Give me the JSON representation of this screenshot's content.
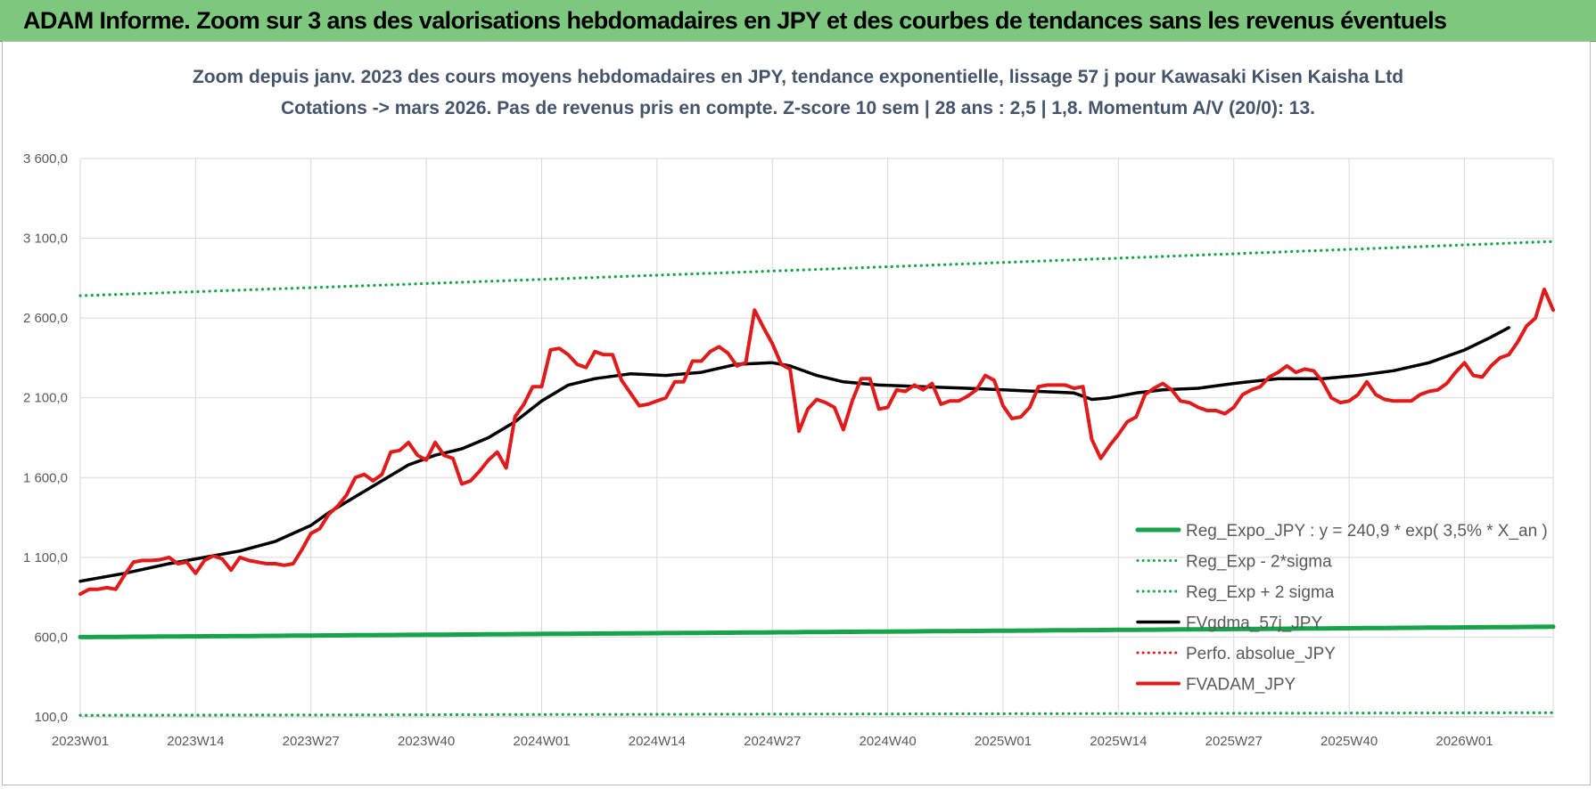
{
  "banner": {
    "title": "ADAM Informe. Zoom sur 3 ans des valorisations hebdomadaires en JPY et des courbes de tendances sans les revenus éventuels"
  },
  "chart_data": {
    "type": "line",
    "title_line1": "Zoom depuis janv. 2023 des cours moyens hebdomadaires en JPY, tendance exponentielle, lissage 57 j pour Kawasaki Kisen Kaisha Ltd",
    "title_line2": "Cotations -> mars 2026. Pas de revenus pris en compte. Z-score 10 sem | 28 ans : 2,5 | 1,8. Momentum A/V (20/0): 13.",
    "xlabel": "",
    "ylabel": "",
    "ylim": [
      100,
      3600
    ],
    "yticks": [
      "100,0",
      "600,0",
      "1 100,0",
      "1 600,0",
      "2 100,0",
      "2 600,0",
      "3 100,0",
      "3 600,0"
    ],
    "yvalues": [
      100,
      600,
      1100,
      1600,
      2100,
      2600,
      3100,
      3600
    ],
    "xticks": [
      "2023W01",
      "2023W14",
      "2023W27",
      "2023W40",
      "2024W01",
      "2024W14",
      "2024W27",
      "2024W40",
      "2025W01",
      "2025W14",
      "2025W27",
      "2025W40",
      "2026W01"
    ],
    "grid": true,
    "legend_position": "bottom-right",
    "colors": {
      "green": "#16a34a",
      "black": "#000000",
      "red": "#e11a1a",
      "grid": "#d9d9d9"
    },
    "series": [
      {
        "name": "Reg_Expo_JPY : y = 240,9 * exp( 3,5% *  X_an )",
        "style": "solid-thick",
        "color": "#16a34a",
        "start": 600,
        "end": 665
      },
      {
        "name": "Reg_Exp - 2*sigma",
        "style": "dotted",
        "color": "#16a34a",
        "start": 110,
        "end": 126
      },
      {
        "name": "Reg_Exp + 2 sigma",
        "style": "dotted",
        "color": "#16a34a",
        "start": 2740,
        "end": 3080
      },
      {
        "name": "FVgdma_57j_JPY",
        "style": "solid",
        "color": "#000000",
        "points": [
          [
            0,
            950
          ],
          [
            5,
            1000
          ],
          [
            10,
            1060
          ],
          [
            14,
            1100
          ],
          [
            18,
            1140
          ],
          [
            22,
            1200
          ],
          [
            26,
            1300
          ],
          [
            28,
            1380
          ],
          [
            31,
            1480
          ],
          [
            34,
            1580
          ],
          [
            37,
            1680
          ],
          [
            40,
            1740
          ],
          [
            43,
            1780
          ],
          [
            46,
            1850
          ],
          [
            49,
            1950
          ],
          [
            52,
            2080
          ],
          [
            55,
            2180
          ],
          [
            58,
            2220
          ],
          [
            62,
            2250
          ],
          [
            66,
            2240
          ],
          [
            70,
            2260
          ],
          [
            74,
            2310
          ],
          [
            78,
            2320
          ],
          [
            80,
            2300
          ],
          [
            83,
            2240
          ],
          [
            86,
            2200
          ],
          [
            90,
            2180
          ],
          [
            95,
            2170
          ],
          [
            100,
            2160
          ],
          [
            104,
            2150
          ],
          [
            108,
            2140
          ],
          [
            112,
            2130
          ],
          [
            114,
            2090
          ],
          [
            116,
            2100
          ],
          [
            119,
            2130
          ],
          [
            122,
            2150
          ],
          [
            126,
            2160
          ],
          [
            130,
            2190
          ],
          [
            135,
            2220
          ],
          [
            140,
            2220
          ],
          [
            144,
            2240
          ],
          [
            148,
            2270
          ],
          [
            152,
            2320
          ],
          [
            156,
            2400
          ],
          [
            159,
            2480
          ],
          [
            161,
            2540
          ]
        ]
      },
      {
        "name": "Perfo. absolue_JPY",
        "style": "dotted",
        "color": "#e11a1a",
        "points": []
      },
      {
        "name": "FVADAM_JPY",
        "style": "solid",
        "color": "#e11a1a",
        "points": [
          [
            0,
            870
          ],
          [
            1,
            900
          ],
          [
            2,
            900
          ],
          [
            3,
            910
          ],
          [
            4,
            900
          ],
          [
            5,
            990
          ],
          [
            6,
            1070
          ],
          [
            7,
            1080
          ],
          [
            8,
            1080
          ],
          [
            9,
            1085
          ],
          [
            10,
            1100
          ],
          [
            11,
            1060
          ],
          [
            12,
            1070
          ],
          [
            13,
            1000
          ],
          [
            14,
            1080
          ],
          [
            15,
            1110
          ],
          [
            16,
            1090
          ],
          [
            17,
            1020
          ],
          [
            18,
            1100
          ],
          [
            19,
            1080
          ],
          [
            20,
            1070
          ],
          [
            21,
            1060
          ],
          [
            22,
            1060
          ],
          [
            23,
            1050
          ],
          [
            24,
            1060
          ],
          [
            25,
            1150
          ],
          [
            26,
            1250
          ],
          [
            27,
            1280
          ],
          [
            28,
            1370
          ],
          [
            29,
            1420
          ],
          [
            30,
            1490
          ],
          [
            31,
            1600
          ],
          [
            32,
            1620
          ],
          [
            33,
            1580
          ],
          [
            34,
            1620
          ],
          [
            35,
            1760
          ],
          [
            36,
            1770
          ],
          [
            37,
            1820
          ],
          [
            38,
            1740
          ],
          [
            39,
            1710
          ],
          [
            40,
            1820
          ],
          [
            41,
            1740
          ],
          [
            42,
            1720
          ],
          [
            43,
            1560
          ],
          [
            44,
            1580
          ],
          [
            45,
            1640
          ],
          [
            46,
            1710
          ],
          [
            47,
            1760
          ],
          [
            48,
            1660
          ],
          [
            49,
            1980
          ],
          [
            50,
            2060
          ],
          [
            51,
            2170
          ],
          [
            52,
            2170
          ],
          [
            53,
            2400
          ],
          [
            54,
            2410
          ],
          [
            55,
            2370
          ],
          [
            56,
            2310
          ],
          [
            57,
            2290
          ],
          [
            58,
            2390
          ],
          [
            59,
            2370
          ],
          [
            60,
            2370
          ],
          [
            61,
            2210
          ],
          [
            62,
            2130
          ],
          [
            63,
            2050
          ],
          [
            64,
            2060
          ],
          [
            65,
            2080
          ],
          [
            66,
            2100
          ],
          [
            67,
            2200
          ],
          [
            68,
            2200
          ],
          [
            69,
            2330
          ],
          [
            70,
            2330
          ],
          [
            71,
            2390
          ],
          [
            72,
            2420
          ],
          [
            73,
            2380
          ],
          [
            74,
            2300
          ],
          [
            75,
            2320
          ],
          [
            76,
            2650
          ],
          [
            77,
            2540
          ],
          [
            78,
            2440
          ],
          [
            79,
            2310
          ],
          [
            80,
            2280
          ],
          [
            81,
            1890
          ],
          [
            82,
            2030
          ],
          [
            83,
            2090
          ],
          [
            84,
            2070
          ],
          [
            85,
            2040
          ],
          [
            86,
            1900
          ],
          [
            87,
            2080
          ],
          [
            88,
            2220
          ],
          [
            89,
            2220
          ],
          [
            90,
            2030
          ],
          [
            91,
            2040
          ],
          [
            92,
            2150
          ],
          [
            93,
            2140
          ],
          [
            94,
            2180
          ],
          [
            95,
            2150
          ],
          [
            96,
            2190
          ],
          [
            97,
            2060
          ],
          [
            98,
            2080
          ],
          [
            99,
            2080
          ],
          [
            100,
            2110
          ],
          [
            101,
            2150
          ],
          [
            102,
            2240
          ],
          [
            103,
            2210
          ],
          [
            104,
            2050
          ],
          [
            105,
            1970
          ],
          [
            106,
            1980
          ],
          [
            107,
            2040
          ],
          [
            108,
            2170
          ],
          [
            109,
            2180
          ],
          [
            110,
            2180
          ],
          [
            111,
            2180
          ],
          [
            112,
            2160
          ],
          [
            113,
            2170
          ],
          [
            114,
            1840
          ],
          [
            115,
            1720
          ],
          [
            116,
            1800
          ],
          [
            117,
            1870
          ],
          [
            118,
            1950
          ],
          [
            119,
            1980
          ],
          [
            120,
            2120
          ],
          [
            121,
            2160
          ],
          [
            122,
            2190
          ],
          [
            123,
            2150
          ],
          [
            124,
            2080
          ],
          [
            125,
            2070
          ],
          [
            126,
            2040
          ],
          [
            127,
            2020
          ],
          [
            128,
            2020
          ],
          [
            129,
            2000
          ],
          [
            130,
            2040
          ],
          [
            131,
            2120
          ],
          [
            132,
            2150
          ],
          [
            133,
            2170
          ],
          [
            134,
            2230
          ],
          [
            135,
            2260
          ],
          [
            136,
            2300
          ],
          [
            137,
            2260
          ],
          [
            138,
            2280
          ],
          [
            139,
            2270
          ],
          [
            140,
            2200
          ],
          [
            141,
            2100
          ],
          [
            142,
            2070
          ],
          [
            143,
            2080
          ],
          [
            144,
            2120
          ],
          [
            145,
            2200
          ],
          [
            146,
            2120
          ],
          [
            147,
            2090
          ],
          [
            148,
            2080
          ],
          [
            149,
            2080
          ],
          [
            150,
            2080
          ],
          [
            151,
            2120
          ],
          [
            152,
            2140
          ],
          [
            153,
            2150
          ],
          [
            154,
            2190
          ],
          [
            155,
            2260
          ],
          [
            156,
            2320
          ],
          [
            157,
            2240
          ],
          [
            158,
            2230
          ],
          [
            159,
            2300
          ],
          [
            160,
            2350
          ],
          [
            161,
            2370
          ],
          [
            162,
            2450
          ],
          [
            163,
            2550
          ],
          [
            164,
            2600
          ],
          [
            165,
            2780
          ],
          [
            166,
            2650
          ]
        ]
      }
    ]
  }
}
